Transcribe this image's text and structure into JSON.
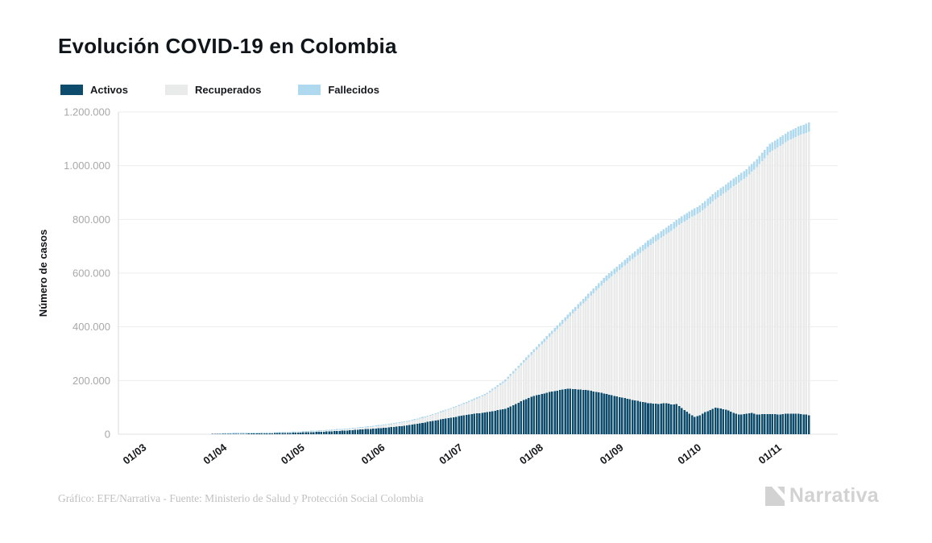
{
  "header": {
    "title": "Evolución COVID-19 en Colombia"
  },
  "legend": {
    "items": [
      {
        "label": "Activos",
        "color": "#0e4c6e"
      },
      {
        "label": "Recuperados",
        "color": "#e9eaea"
      },
      {
        "label": "Fallecidos",
        "color": "#aed9ee"
      }
    ]
  },
  "chart_data": {
    "type": "bar",
    "subtype": "stacked-daily-bars",
    "title": "Evolución COVID-19 en Colombia",
    "xlabel": "",
    "ylabel": "Número de casos",
    "x_unit": "days since 01/03 (2020)",
    "ylim": [
      0,
      1200000
    ],
    "grid": "horizontal",
    "legend_position": "top-left",
    "series_names": [
      "Activos",
      "Recuperados",
      "Fallecidos"
    ],
    "stack_order": "Activos (bottom), Recuperados (middle), Fallecidos (top)",
    "colors": {
      "activos": "#0e4c6e",
      "recuperados": "#e9eaea",
      "fallecidos": "#aed9ee"
    },
    "y_ticks": [
      {
        "label": "0",
        "value": 0
      },
      {
        "label": "200.000",
        "value": 200000
      },
      {
        "label": "400.000",
        "value": 400000
      },
      {
        "label": "600.000",
        "value": 600000
      },
      {
        "label": "800.000",
        "value": 800000
      },
      {
        "label": "1.000.000",
        "value": 1000000
      },
      {
        "label": "1.200.000",
        "value": 1200000
      }
    ],
    "x_ticks": [
      {
        "label": "01/03",
        "day": 0
      },
      {
        "label": "01/04",
        "day": 31
      },
      {
        "label": "01/05",
        "day": 61
      },
      {
        "label": "01/06",
        "day": 92
      },
      {
        "label": "01/07",
        "day": 122
      },
      {
        "label": "01/08",
        "day": 153
      },
      {
        "label": "01/09",
        "day": 184
      },
      {
        "label": "01/10",
        "day": 214
      },
      {
        "label": "01/11",
        "day": 245
      }
    ],
    "points_format": [
      "day",
      "activos",
      "recuperados",
      "fallecidos"
    ],
    "points": [
      [
        0,
        0,
        0,
        0
      ],
      [
        7,
        3,
        0,
        0
      ],
      [
        14,
        45,
        1,
        1
      ],
      [
        21,
        230,
        10,
        3
      ],
      [
        28,
        630,
        55,
        12
      ],
      [
        31,
        950,
        110,
        20
      ],
      [
        38,
        1750,
        270,
        55
      ],
      [
        45,
        2450,
        450,
        90
      ],
      [
        52,
        3500,
        650,
        200
      ],
      [
        59,
        4900,
        950,
        300
      ],
      [
        61,
        5500,
        1150,
        320
      ],
      [
        68,
        7700,
        1850,
        420
      ],
      [
        75,
        10500,
        2950,
        520
      ],
      [
        82,
        13900,
        4450,
        620
      ],
      [
        89,
        19100,
        6150,
        750
      ],
      [
        92,
        20400,
        7700,
        900
      ],
      [
        99,
        26300,
        10400,
        1250
      ],
      [
        106,
        33800,
        14400,
        1750
      ],
      [
        113,
        45800,
        19900,
        2250
      ],
      [
        120,
        58800,
        29100,
        3050
      ],
      [
        122,
        61800,
        32800,
        3300
      ],
      [
        129,
        73800,
        45700,
        4450
      ],
      [
        136,
        82000,
        67500,
        5600
      ],
      [
        143,
        95000,
        102100,
        6950
      ],
      [
        150,
        126800,
        139900,
        9300
      ],
      [
        153,
        140000,
        155700,
        10300
      ],
      [
        160,
        157000,
        206500,
        12500
      ],
      [
        167,
        170000,
        260500,
        14500
      ],
      [
        174,
        165000,
        331800,
        16200
      ],
      [
        181,
        152000,
        411500,
        18500
      ],
      [
        184,
        145000,
        443600,
        19400
      ],
      [
        191,
        130000,
        514600,
        21400
      ],
      [
        198,
        116000,
        582000,
        23000
      ],
      [
        202,
        113000,
        612000,
        23800
      ],
      [
        205,
        116000,
        629600,
        24400
      ],
      [
        207,
        111000,
        647000,
        24800
      ],
      [
        209,
        112000,
        661000,
        25000
      ],
      [
        212,
        90000,
        702500,
        25500
      ],
      [
        216,
        64000,
        750900,
        26100
      ],
      [
        218,
        70000,
        756000,
        26500
      ],
      [
        220,
        82000,
        760200,
        26800
      ],
      [
        224,
        99000,
        775800,
        27200
      ],
      [
        228,
        92000,
        810000,
        27800
      ],
      [
        231,
        80000,
        843800,
        28200
      ],
      [
        233,
        73000,
        864600,
        28400
      ],
      [
        236,
        76000,
        882000,
        29100
      ],
      [
        238,
        79000,
        898400,
        29600
      ],
      [
        240,
        74000,
        921000,
        30200
      ],
      [
        245,
        75000,
        975400,
        31600
      ],
      [
        249,
        74000,
        1000000,
        32300
      ],
      [
        252,
        77000,
        1016300,
        32700
      ],
      [
        256,
        76000,
        1036000,
        33300
      ],
      [
        259,
        73000,
        1049200,
        33800
      ],
      [
        260,
        71000,
        1056000,
        34000
      ]
    ]
  },
  "footer": {
    "credit": "Gráfico: EFE/Narrativa - Fuente: Ministerio de Salud y Protección Social Colombia",
    "logo_text": "Narrativa"
  },
  "style_colors": {
    "gridline": "#ededed",
    "axis_line": "#d9d9d9",
    "zero_line": "#e2e2e2",
    "y_tick_label": "#a8a8a8",
    "x_tick_label": "#15181b",
    "credit_text": "#c0c0c0",
    "logo_gray": "#d2d2d2"
  }
}
